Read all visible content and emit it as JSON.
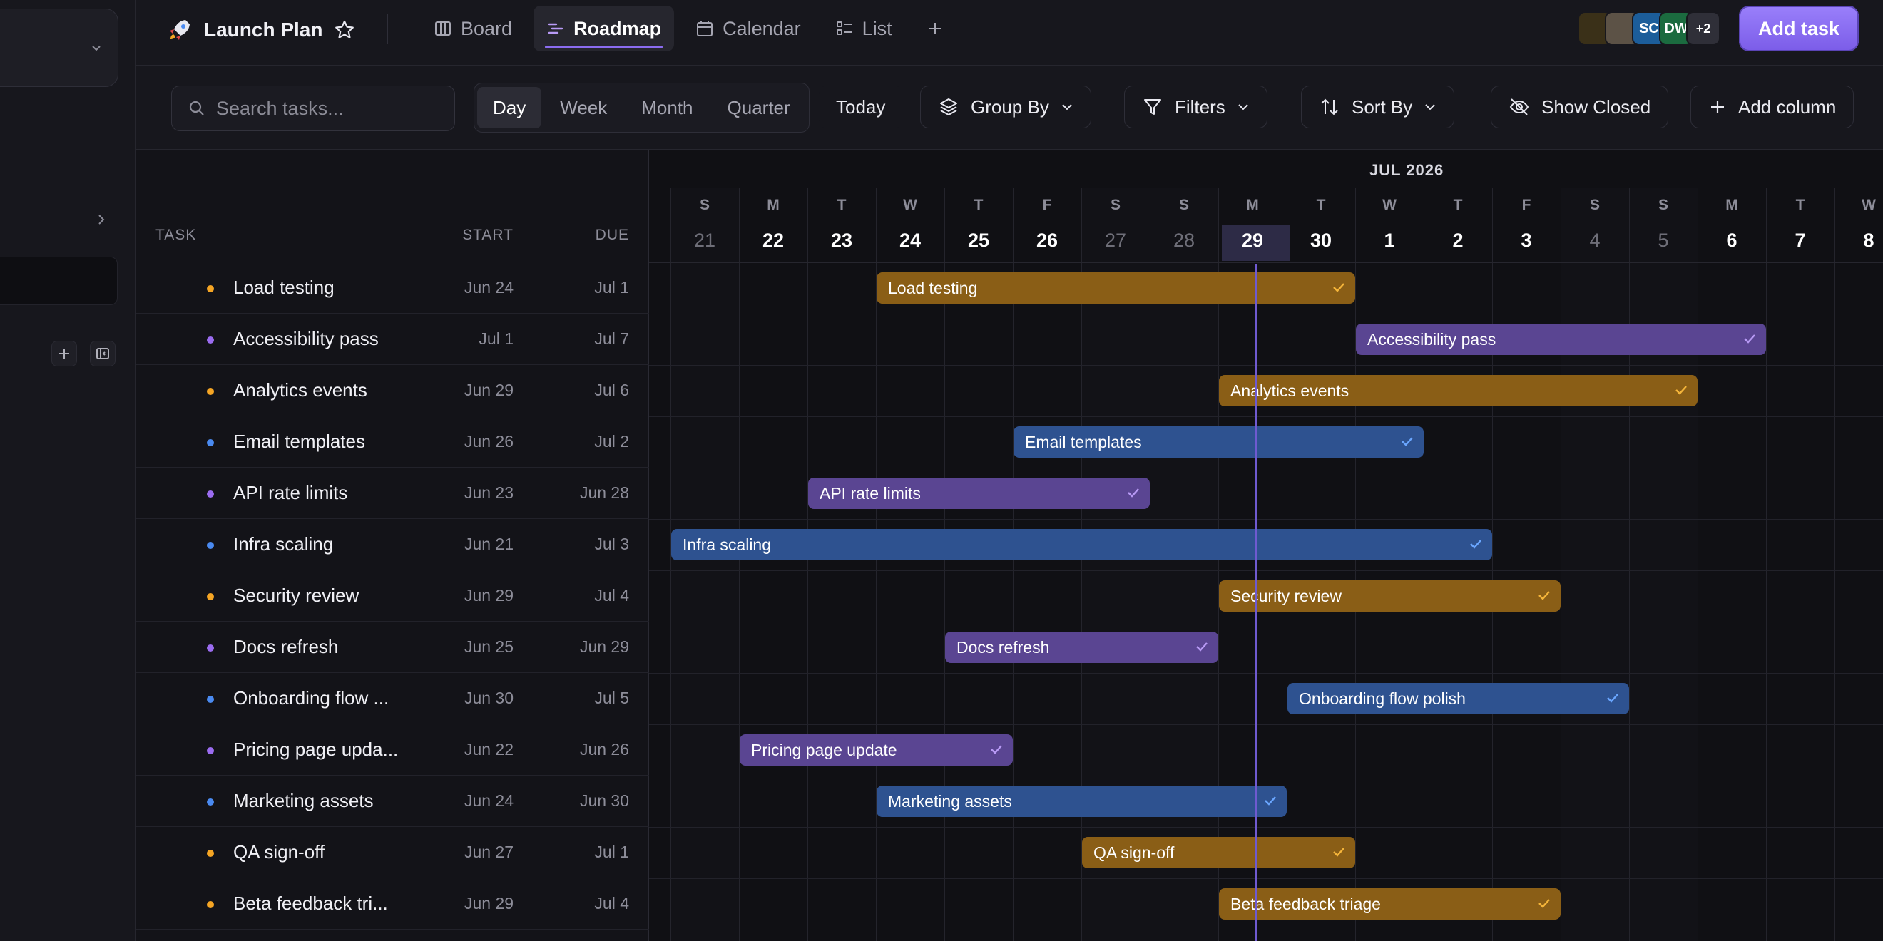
{
  "project": {
    "title": "Launch Plan"
  },
  "views": [
    {
      "label": "Board",
      "icon": "board-icon",
      "active": false
    },
    {
      "label": "Roadmap",
      "icon": "roadmap-icon",
      "active": true
    },
    {
      "label": "Calendar",
      "icon": "calendar-icon",
      "active": false
    },
    {
      "label": "List",
      "icon": "list-icon",
      "active": false
    }
  ],
  "avatars": [
    {
      "label": "",
      "color": "#3a3018"
    },
    {
      "label": "",
      "color": "#5c5246"
    },
    {
      "label": "SC",
      "color": "#1c5d9a"
    },
    {
      "label": "DW",
      "color": "#1b6b3f"
    },
    {
      "label": "+2",
      "color": "#2f2f38"
    }
  ],
  "add_task_label": "Add task",
  "toolbar": {
    "search_placeholder": "Search tasks...",
    "scales": [
      "Day",
      "Week",
      "Month",
      "Quarter"
    ],
    "active_scale": "Day",
    "today_label": "Today",
    "group_by_label": "Group By",
    "filters_label": "Filters",
    "sort_by_label": "Sort By",
    "show_closed_label": "Show Closed",
    "add_column_label": "Add column"
  },
  "columns": {
    "task": "TASK",
    "start": "START",
    "due": "DUE"
  },
  "timeline": {
    "month_label": "JUL 2026",
    "days": [
      {
        "dow": "S",
        "num": "21",
        "weekend": true
      },
      {
        "dow": "M",
        "num": "22",
        "weekend": false
      },
      {
        "dow": "T",
        "num": "23",
        "weekend": false
      },
      {
        "dow": "W",
        "num": "24",
        "weekend": false
      },
      {
        "dow": "T",
        "num": "25",
        "weekend": false
      },
      {
        "dow": "F",
        "num": "26",
        "weekend": false
      },
      {
        "dow": "S",
        "num": "27",
        "weekend": true
      },
      {
        "dow": "S",
        "num": "28",
        "weekend": true
      },
      {
        "dow": "M",
        "num": "29",
        "weekend": false,
        "today": true
      },
      {
        "dow": "T",
        "num": "30",
        "weekend": false
      },
      {
        "dow": "W",
        "num": "1",
        "weekend": false
      },
      {
        "dow": "T",
        "num": "2",
        "weekend": false
      },
      {
        "dow": "F",
        "num": "3",
        "weekend": false
      },
      {
        "dow": "S",
        "num": "4",
        "weekend": true
      },
      {
        "dow": "S",
        "num": "5",
        "weekend": true
      },
      {
        "dow": "M",
        "num": "6",
        "weekend": false
      },
      {
        "dow": "T",
        "num": "7",
        "weekend": false
      },
      {
        "dow": "W",
        "num": "8",
        "weekend": false
      }
    ]
  },
  "colors": {
    "amber": "#8a5e16",
    "violet": "#5a4592",
    "blue": "#2e5290",
    "dot_amber": "#f5a524",
    "dot_violet": "#9b6cf0",
    "dot_blue": "#4a8af0",
    "check_amber": "#f5b53a",
    "check_violet": "#b89af5",
    "check_blue": "#6aa6ff"
  },
  "tasks": [
    {
      "name": "Load testing",
      "bar_label": "Load testing",
      "start": "Jun 24",
      "due": "Jul 1",
      "color": "amber",
      "s": 3,
      "e": 10
    },
    {
      "name": "Accessibility pass",
      "bar_label": "Accessibility pass",
      "start": "Jul 1",
      "due": "Jul 7",
      "color": "violet",
      "s": 10,
      "e": 16
    },
    {
      "name": "Analytics events",
      "bar_label": "Analytics events",
      "start": "Jun 29",
      "due": "Jul 6",
      "color": "amber",
      "s": 8,
      "e": 15
    },
    {
      "name": "Email templates",
      "bar_label": "Email templates",
      "start": "Jun 26",
      "due": "Jul 2",
      "color": "blue",
      "s": 5,
      "e": 11
    },
    {
      "name": "API rate limits",
      "bar_label": "API rate limits",
      "start": "Jun 23",
      "due": "Jun 28",
      "color": "violet",
      "s": 2,
      "e": 7
    },
    {
      "name": "Infra scaling",
      "bar_label": "Infra scaling",
      "start": "Jun 21",
      "due": "Jul 3",
      "color": "blue",
      "s": 0,
      "e": 12
    },
    {
      "name": "Security review",
      "bar_label": "Security review",
      "start": "Jun 29",
      "due": "Jul 4",
      "color": "amber",
      "s": 8,
      "e": 13
    },
    {
      "name": "Docs refresh",
      "bar_label": "Docs refresh",
      "start": "Jun 25",
      "due": "Jun 29",
      "color": "violet",
      "s": 4,
      "e": 8
    },
    {
      "name": "Onboarding flow ...",
      "bar_label": "Onboarding flow polish",
      "start": "Jun 30",
      "due": "Jul 5",
      "color": "blue",
      "s": 9,
      "e": 14
    },
    {
      "name": "Pricing page upda...",
      "bar_label": "Pricing page update",
      "start": "Jun 22",
      "due": "Jun 26",
      "color": "violet",
      "s": 1,
      "e": 5
    },
    {
      "name": "Marketing assets",
      "bar_label": "Marketing assets",
      "start": "Jun 24",
      "due": "Jun 30",
      "color": "blue",
      "s": 3,
      "e": 9
    },
    {
      "name": "QA sign-off",
      "bar_label": "QA sign-off",
      "start": "Jun 27",
      "due": "Jul 1",
      "color": "amber",
      "s": 6,
      "e": 10
    },
    {
      "name": "Beta feedback tri...",
      "bar_label": "Beta feedback triage",
      "start": "Jun 29",
      "due": "Jul 4",
      "color": "amber",
      "s": 8,
      "e": 13
    }
  ]
}
